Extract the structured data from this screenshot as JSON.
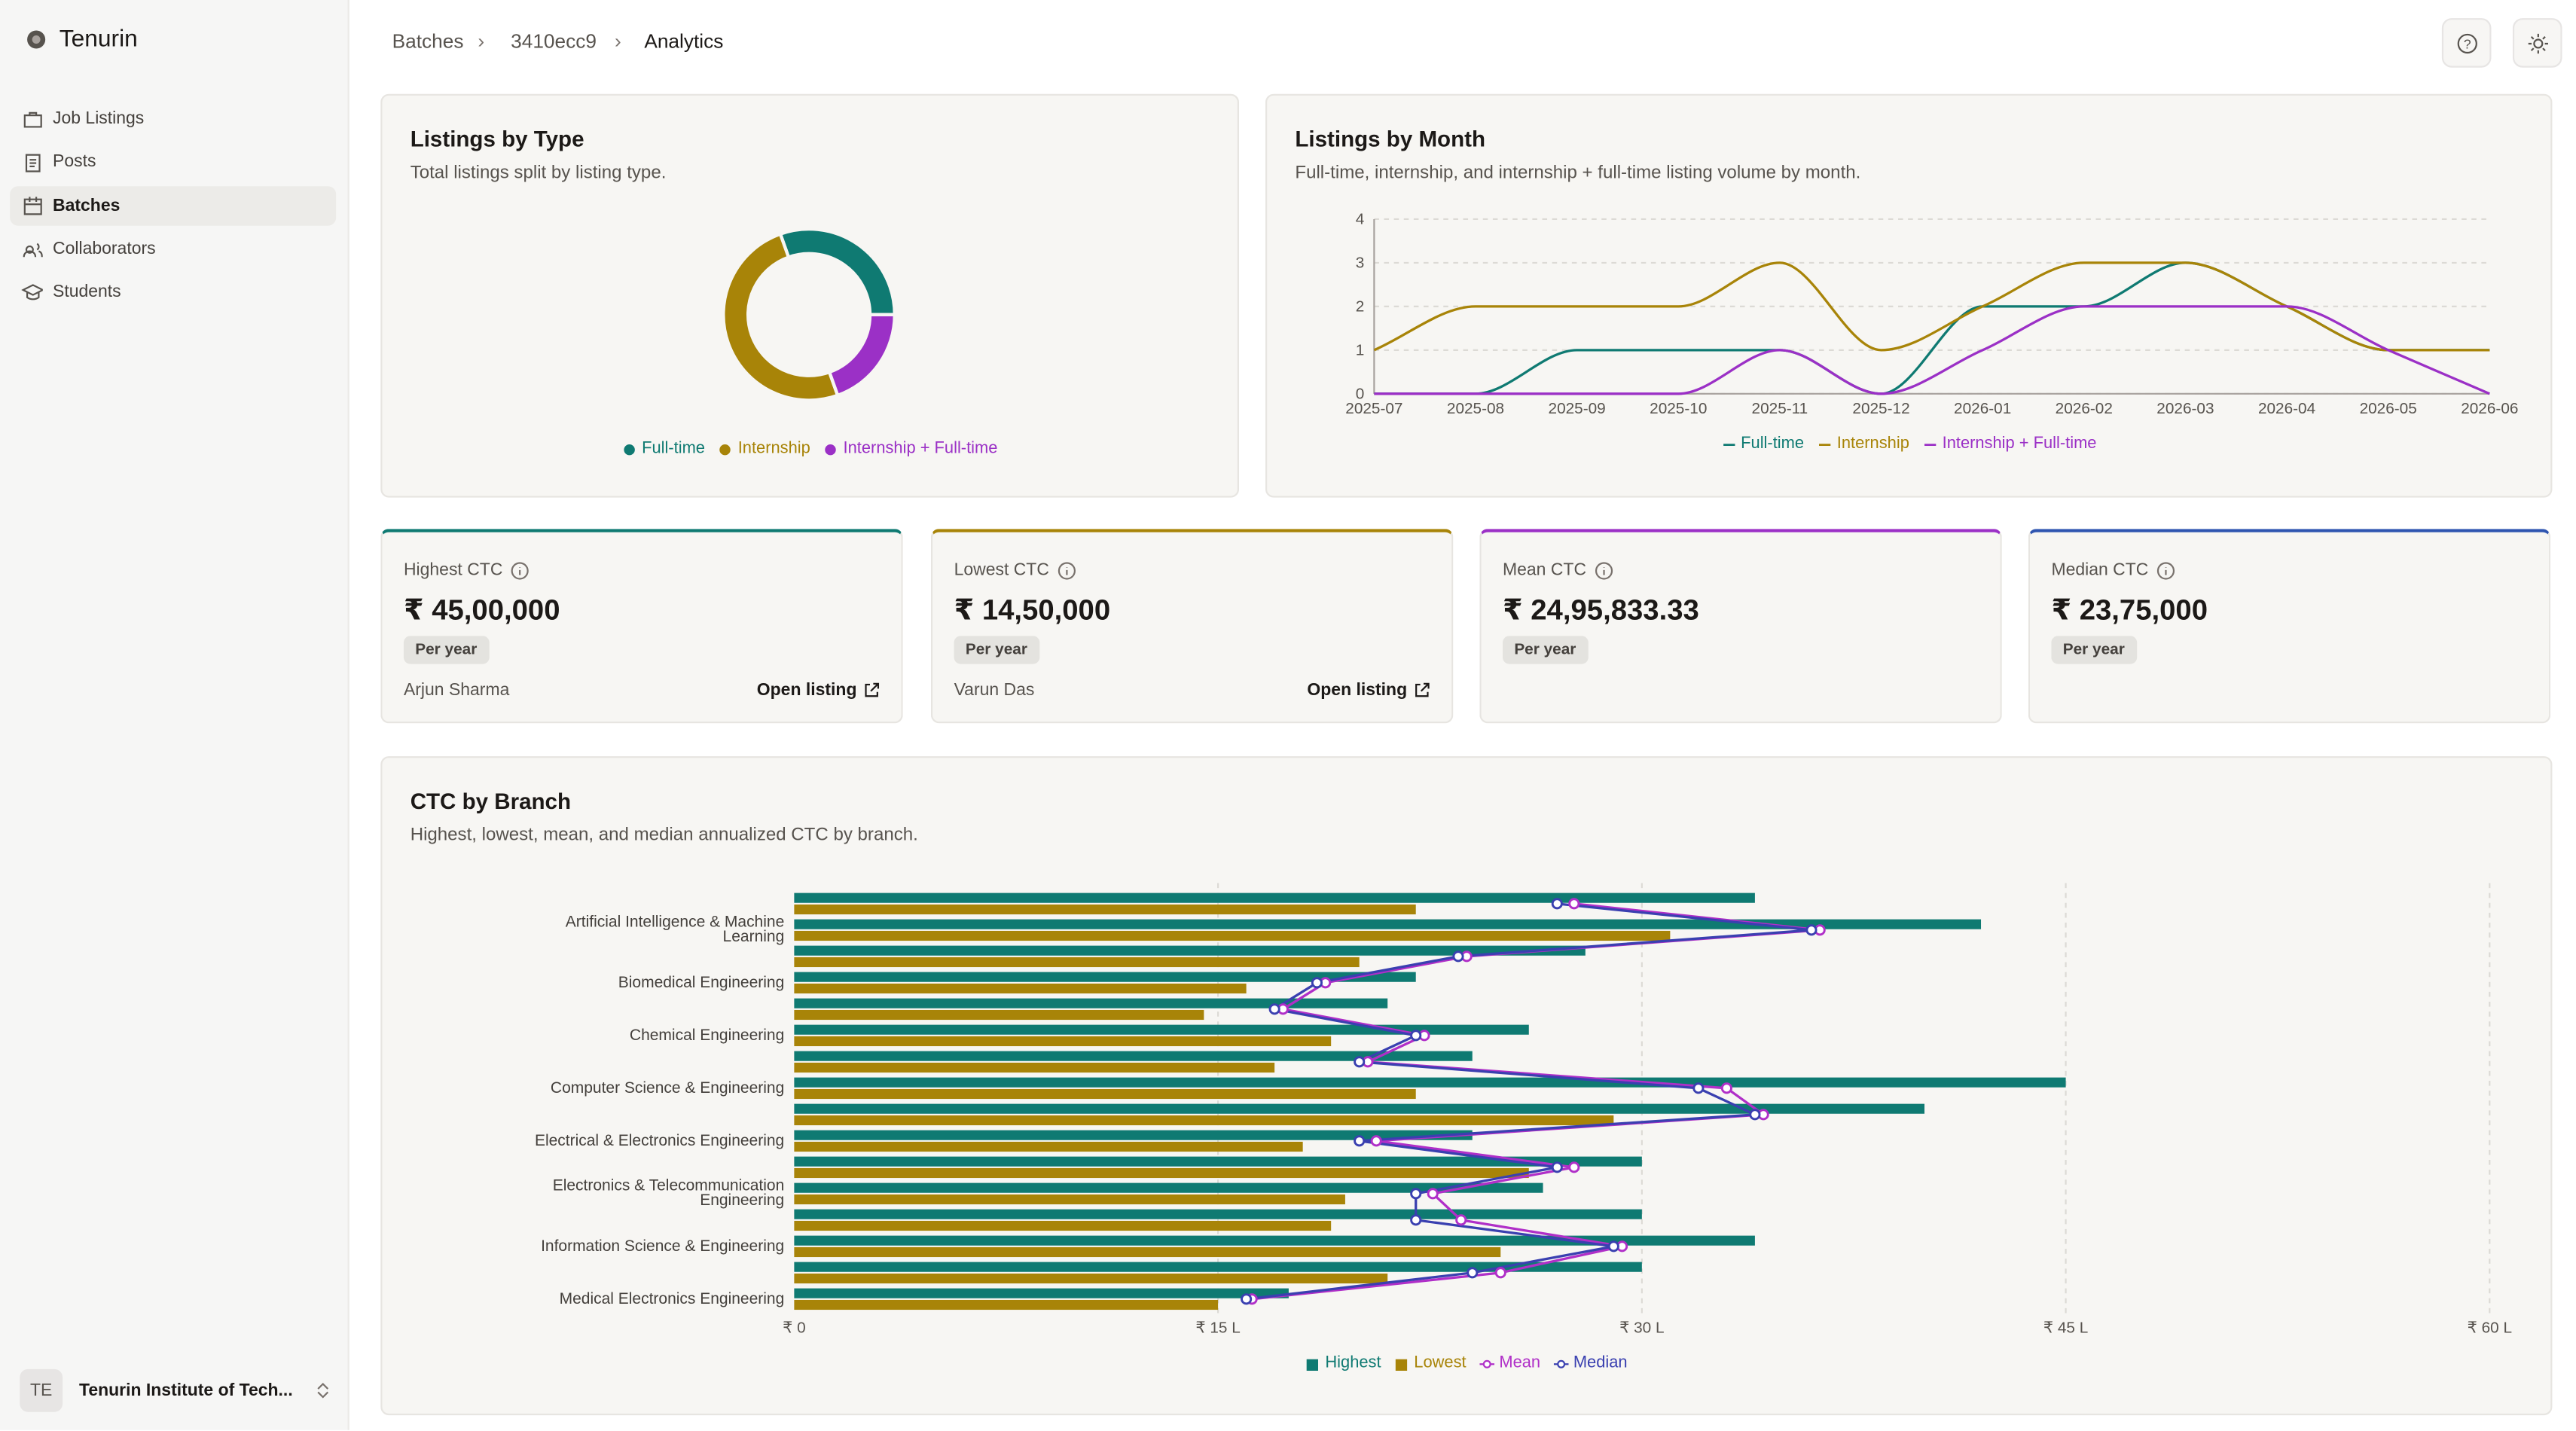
{
  "sidebar": {
    "brand": "Tenurin",
    "nav": [
      "Job Listings",
      "Posts",
      "Batches",
      "Collaborators",
      "Students"
    ],
    "org_initials": "TE",
    "org_name": "Tenurin Institute of Tech..."
  },
  "breadcrumb": [
    "Batches",
    "3410ecc9",
    "Analytics"
  ],
  "chart_data": [
    {
      "type": "pie",
      "title": "Listings by Type",
      "subtitle": "Total listings split by listing type.",
      "categories": [
        "Full-time",
        "Internship",
        "Internship + Full-time"
      ],
      "values": [
        14,
        23,
        9
      ],
      "colors": [
        "#0f7a72",
        "#a88408",
        "#9b30c6"
      ]
    },
    {
      "type": "line",
      "title": "Listings by Month",
      "subtitle": "Full-time, internship, and internship + full-time listing volume by month.",
      "categories": [
        "2025-07",
        "2025-08",
        "2025-09",
        "2025-10",
        "2025-11",
        "2025-12",
        "2026-01",
        "2026-02",
        "2026-03",
        "2026-04",
        "2026-05",
        "2026-06"
      ],
      "series": [
        {
          "name": "Full-time",
          "color": "#0f7a72",
          "values": [
            0,
            0,
            1,
            1,
            1,
            0,
            2,
            2,
            3,
            2,
            1,
            1
          ]
        },
        {
          "name": "Internship",
          "color": "#a88408",
          "values": [
            1,
            2,
            2,
            2,
            3,
            1,
            2,
            3,
            3,
            2,
            1,
            1
          ]
        },
        {
          "name": "Internship + Full-time",
          "color": "#9b30c6",
          "values": [
            0,
            0,
            0,
            0,
            1,
            0,
            1,
            2,
            2,
            2,
            1,
            0
          ]
        }
      ],
      "ylim": [
        0,
        4
      ],
      "yticks": [
        0,
        1,
        2,
        3,
        4
      ],
      "grid": true
    },
    {
      "type": "bar",
      "orientation": "horizontal",
      "title": "CTC by Branch",
      "subtitle": "Highest, lowest, mean, and median annualized CTC by branch.",
      "categories": [
        null,
        "Artificial Intelligence & Machine Learning",
        null,
        "Biomedical Engineering",
        null,
        "Chemical Engineering",
        null,
        "Computer Science & Engineering",
        null,
        "Electrical & Electronics Engineering",
        null,
        "Electronics & Telecommunication Engineering",
        null,
        "Information Science & Engineering",
        null,
        "Medical Electronics Engineering"
      ],
      "series": [
        {
          "name": "Highest",
          "color": "#0f7a72",
          "mark": "bar",
          "values": [
            34,
            42,
            28,
            22,
            21,
            26,
            24,
            45,
            40,
            24,
            30,
            26.5,
            30,
            34,
            30,
            17.5
          ]
        },
        {
          "name": "Lowest",
          "color": "#a88408",
          "mark": "bar",
          "values": [
            22,
            31,
            20,
            16,
            14.5,
            19,
            17,
            22,
            29,
            18,
            26,
            19.5,
            19,
            25,
            21,
            15
          ]
        },
        {
          "name": "Mean",
          "color": "#b02fc8",
          "mark": "line",
          "values": [
            27.6,
            36.3,
            23.8,
            18.8,
            17.3,
            22.3,
            20.3,
            33,
            34.3,
            20.6,
            27.6,
            22.6,
            23.6,
            29.3,
            25,
            16.2
          ]
        },
        {
          "name": "Median",
          "color": "#3a40b0",
          "mark": "line",
          "values": [
            27,
            36,
            23.5,
            18.5,
            17,
            22,
            20,
            32,
            34,
            20,
            27,
            22,
            22,
            29,
            24,
            16
          ]
        }
      ],
      "xlim": [
        0,
        60
      ],
      "xticks": [
        {
          "value": 0,
          "label": "₹ 0"
        },
        {
          "value": 15,
          "label": "₹ 15 L"
        },
        {
          "value": 30,
          "label": "₹ 30 L"
        },
        {
          "value": 45,
          "label": "₹ 45 L"
        },
        {
          "value": 60,
          "label": "₹ 60 L"
        }
      ],
      "grid": true
    }
  ],
  "stats": [
    {
      "label": "Highest CTC",
      "value": "₹ 45,00,000",
      "badge": "Per year",
      "name": "Arjun Sharma",
      "link": "Open listing",
      "color": "#0f7a72"
    },
    {
      "label": "Lowest CTC",
      "value": "₹ 14,50,000",
      "badge": "Per year",
      "name": "Varun Das",
      "link": "Open listing",
      "color": "#a88408"
    },
    {
      "label": "Mean CTC",
      "value": "₹ 24,95,833.33",
      "badge": "Per year",
      "color": "#9b30c6"
    },
    {
      "label": "Median CTC",
      "value": "₹ 23,75,000",
      "badge": "Per year",
      "color": "#2f55b0"
    }
  ]
}
